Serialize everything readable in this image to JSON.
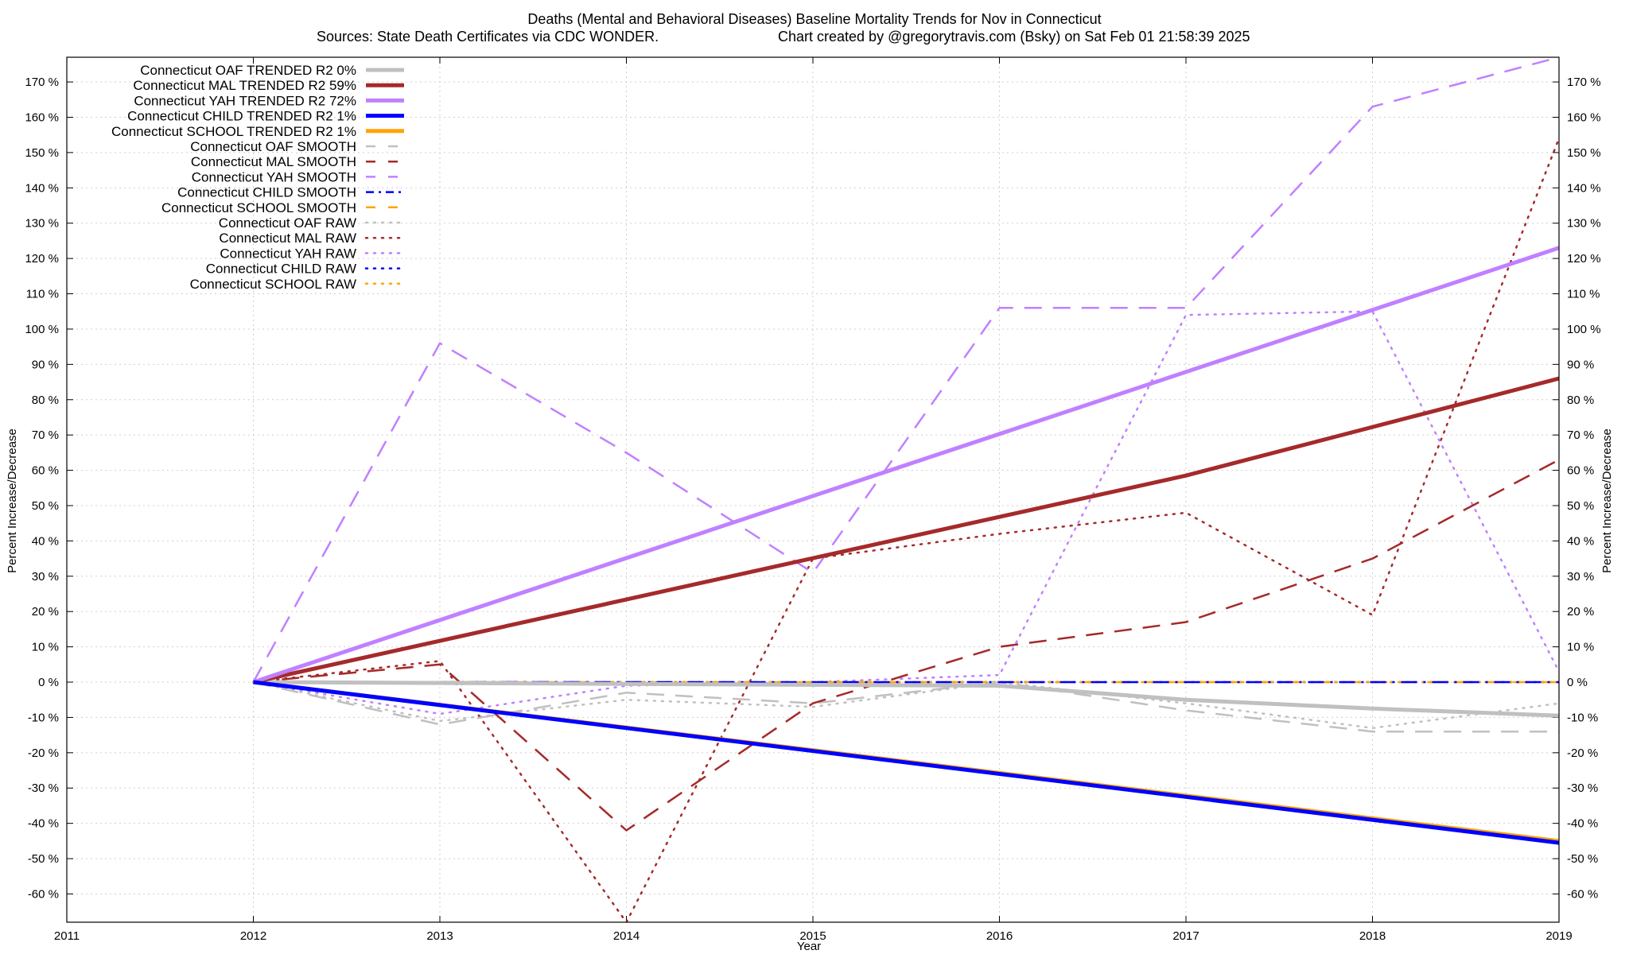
{
  "chart_data": {
    "type": "line",
    "title": "Deaths (Mental and Behavioral Diseases)  Baseline Mortality Trends for Nov in Connecticut",
    "subtitle_left": "Sources: State Death Certificates via CDC WONDER.",
    "subtitle_right": "Chart created by @gregorytravis.com (Bsky) on Sat Feb 01 21:58:39 2025",
    "xlabel": "Year",
    "ylabel_left": "Percent Increase/Decrease",
    "ylabel_right": "Percent Increase/Decrease",
    "xlim": [
      2011,
      2019
    ],
    "ylim": [
      -68,
      177
    ],
    "x_ticks": [
      2011,
      2012,
      2013,
      2014,
      2015,
      2016,
      2017,
      2018,
      2019
    ],
    "y_ticks": [
      -60,
      -50,
      -40,
      -30,
      -20,
      -10,
      0,
      10,
      20,
      30,
      40,
      50,
      60,
      70,
      80,
      90,
      100,
      110,
      120,
      130,
      140,
      150,
      160,
      170
    ],
    "y_tick_suffix": " %",
    "grid": true,
    "legend_position": "top-left",
    "series": [
      {
        "name": "Connecticut OAF TRENDED R2   0%",
        "style": "solid",
        "color": "#c0c0c0",
        "width": 5,
        "x": [
          2012,
          2016,
          2017,
          2018,
          2019
        ],
        "y": [
          0,
          -1,
          -5,
          -7.5,
          -9.5
        ]
      },
      {
        "name": "Connecticut MAL TRENDED R2  59%",
        "style": "solid",
        "color": "#a52a2a",
        "width": 5,
        "x": [
          2012,
          2017,
          2019
        ],
        "y": [
          0,
          58.5,
          86
        ]
      },
      {
        "name": "Connecticut YAH TRENDED R2  72%",
        "style": "solid",
        "color": "#c080ff",
        "width": 5,
        "x": [
          2012,
          2019
        ],
        "y": [
          0,
          123
        ]
      },
      {
        "name": "Connecticut CHILD TRENDED R2   1%",
        "style": "solid",
        "color": "#0000ff",
        "width": 5,
        "x": [
          2012,
          2019
        ],
        "y": [
          0,
          -45.5
        ]
      },
      {
        "name": "Connecticut SCHOOL TRENDED R2   1%",
        "style": "solid",
        "color": "#ffa500",
        "width": 5,
        "x": [
          2012,
          2019
        ],
        "y": [
          0,
          -45
        ]
      },
      {
        "name": "Connecticut OAF SMOOTH",
        "style": "dashed",
        "color": "#c0c0c0",
        "width": 2.5,
        "x": [
          2012,
          2013,
          2014,
          2015,
          2016,
          2017,
          2018,
          2019
        ],
        "y": [
          0,
          -12,
          -3,
          -6,
          0,
          -8,
          -14,
          -14
        ]
      },
      {
        "name": "Connecticut MAL SMOOTH",
        "style": "dashed",
        "color": "#a52a2a",
        "width": 2.5,
        "x": [
          2012,
          2013,
          2014,
          2015,
          2016,
          2017,
          2018,
          2019
        ],
        "y": [
          0,
          5,
          -42,
          -6,
          10,
          17,
          35,
          63
        ]
      },
      {
        "name": "Connecticut YAH SMOOTH",
        "style": "dashed",
        "color": "#c080ff",
        "width": 2.5,
        "x": [
          2012,
          2013,
          2014,
          2015,
          2016,
          2017,
          2018,
          2019
        ],
        "y": [
          0,
          96,
          65,
          31,
          106,
          106,
          163,
          177
        ]
      },
      {
        "name": "Connecticut CHILD SMOOTH",
        "style": "dashdot",
        "color": "#0000ff",
        "width": 2.5,
        "x": [
          2012,
          2019
        ],
        "y": [
          0,
          0
        ]
      },
      {
        "name": "Connecticut SCHOOL SMOOTH",
        "style": "dashed",
        "color": "#ffa500",
        "width": 2.5,
        "x": [
          2012,
          2019
        ],
        "y": [
          0,
          0
        ]
      },
      {
        "name": "Connecticut OAF RAW",
        "style": "dotted",
        "color": "#c0c0c0",
        "width": 2.5,
        "x": [
          2012,
          2013,
          2014,
          2015,
          2016,
          2017,
          2018,
          2019
        ],
        "y": [
          0,
          -11,
          -5,
          -7,
          0,
          -6,
          -13,
          -6
        ]
      },
      {
        "name": "Connecticut MAL RAW",
        "style": "dotted",
        "color": "#a52a2a",
        "width": 2.5,
        "x": [
          2012,
          2013,
          2014,
          2015,
          2016,
          2017,
          2018,
          2019
        ],
        "y": [
          0,
          6,
          -68,
          35,
          42,
          48,
          19,
          154
        ]
      },
      {
        "name": "Connecticut YAH RAW",
        "style": "dotted",
        "color": "#c080ff",
        "width": 2.5,
        "x": [
          2012,
          2013,
          2014,
          2015,
          2016,
          2017,
          2018,
          2019
        ],
        "y": [
          0,
          -9,
          -1,
          0,
          2,
          104,
          105,
          3
        ]
      },
      {
        "name": "Connecticut CHILD RAW",
        "style": "dotted",
        "color": "#0000ff",
        "width": 2.5,
        "x": [
          2012,
          2019
        ],
        "y": [
          0,
          0
        ]
      },
      {
        "name": "Connecticut SCHOOL RAW",
        "style": "dotted",
        "color": "#ffa500",
        "width": 2.5,
        "x": [
          2012,
          2019
        ],
        "y": [
          0,
          0
        ]
      }
    ]
  }
}
